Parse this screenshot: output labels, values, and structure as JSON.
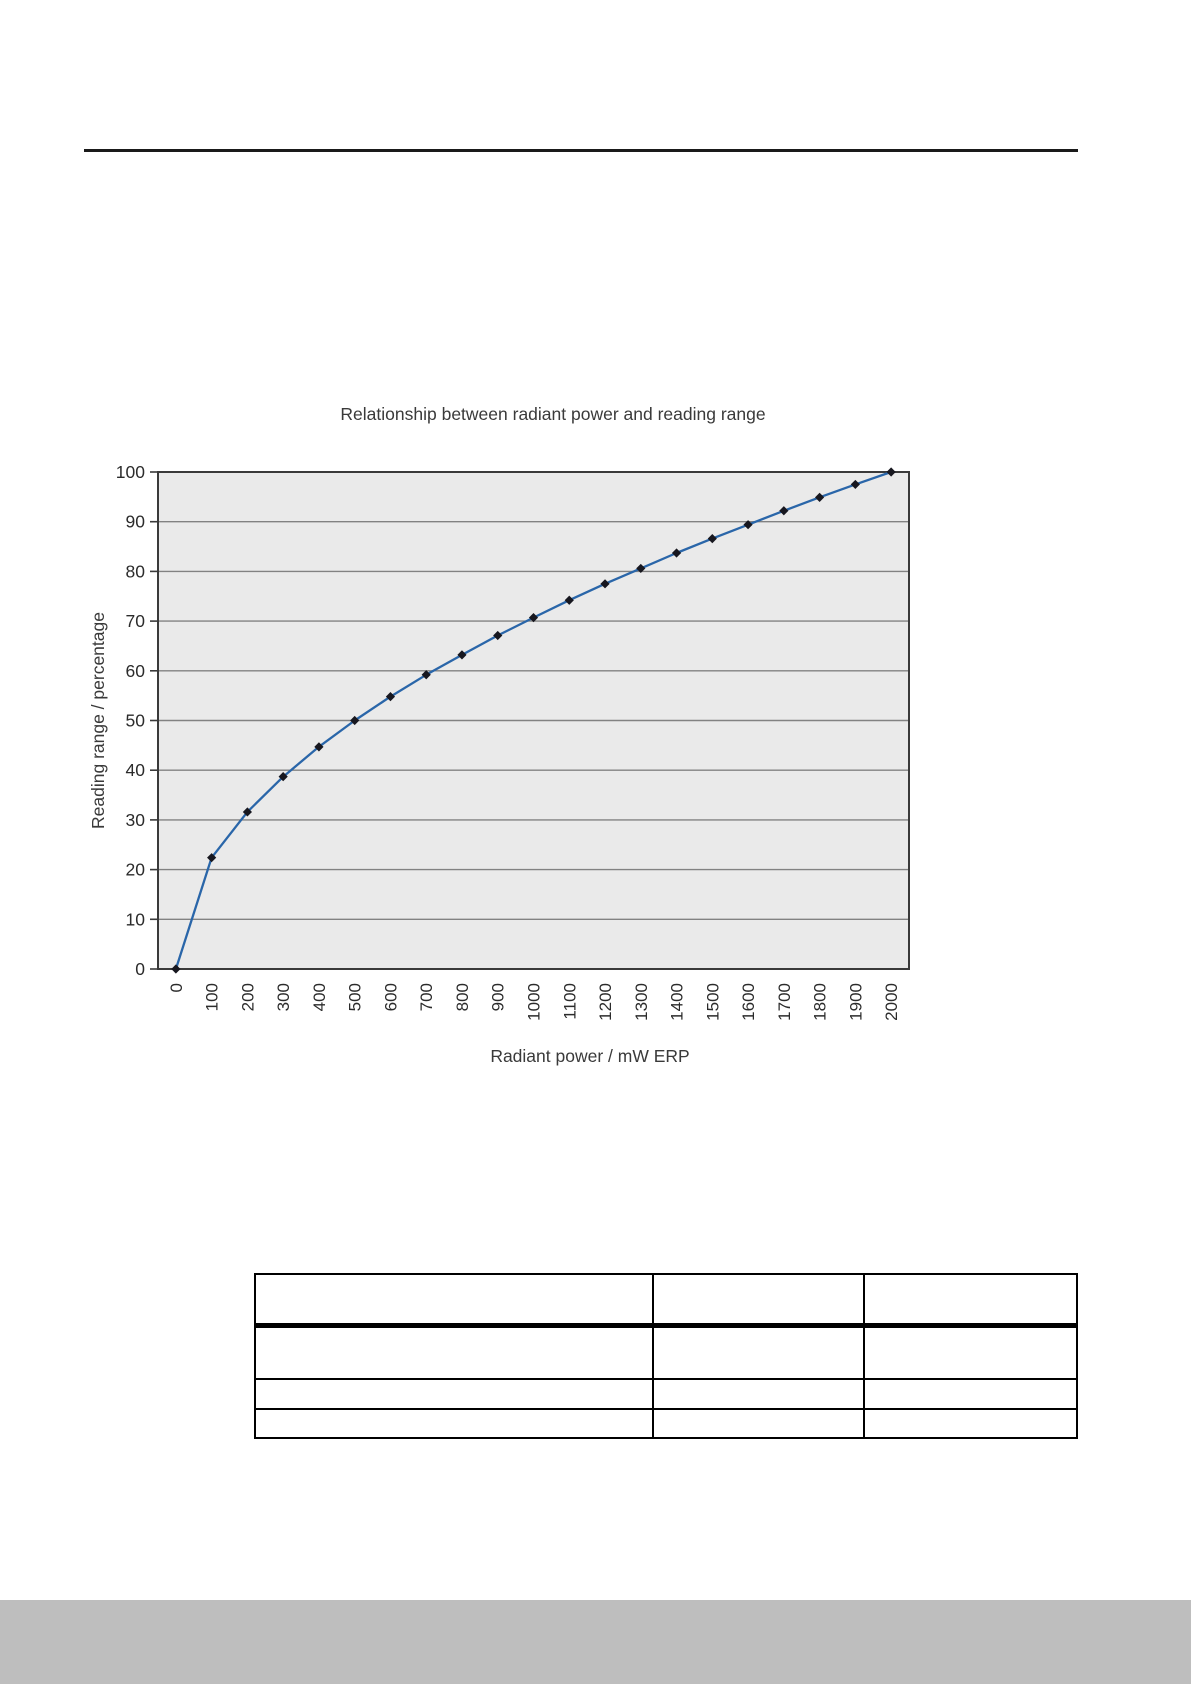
{
  "page": {
    "background": "#FFFFFF",
    "rule_color": "#1A1A1A",
    "footer_color": "#BEBEBE"
  },
  "chart_data": {
    "type": "line",
    "title": "Relationship between radiant power and reading range",
    "xlabel": "Radiant power / mW ERP",
    "ylabel": "Reading range / percentage",
    "x": [
      0,
      100,
      200,
      300,
      400,
      500,
      600,
      700,
      800,
      900,
      1000,
      1100,
      1200,
      1300,
      1400,
      1500,
      1600,
      1700,
      1800,
      1900,
      2000
    ],
    "y": [
      0,
      22.4,
      31.6,
      38.7,
      44.7,
      50.0,
      54.8,
      59.2,
      63.2,
      67.1,
      70.7,
      74.2,
      77.5,
      80.6,
      83.7,
      86.6,
      89.4,
      92.2,
      94.9,
      97.5,
      100.0
    ],
    "ylim": [
      0,
      100
    ],
    "y_ticks": [
      0,
      10,
      20,
      30,
      40,
      50,
      60,
      70,
      80,
      90,
      100
    ],
    "grid": "horizontal",
    "legend_position": "none",
    "marker": "diamond",
    "colors": {
      "line": "#2A66A9",
      "marker": "#17171F",
      "plot_bg": "#EAEAEA",
      "grid": "#828282",
      "border": "#3A3A3A",
      "text": "#2B2B2B"
    }
  },
  "table": {
    "columns": [
      "",
      "",
      ""
    ],
    "rows": [
      [
        "",
        "",
        ""
      ],
      [
        "",
        "",
        ""
      ],
      [
        "",
        "",
        ""
      ]
    ]
  }
}
